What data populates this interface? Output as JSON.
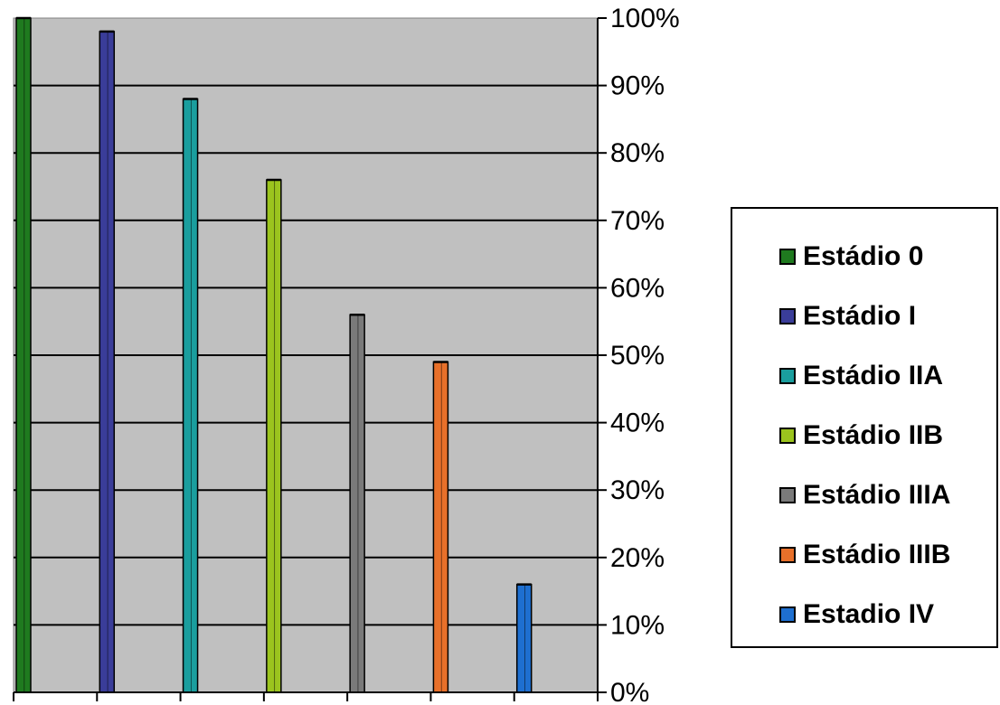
{
  "chart_data": {
    "type": "bar",
    "title": "",
    "xlabel": "",
    "ylabel": "",
    "ylim": [
      0,
      100
    ],
    "y_ticks": [
      "0%",
      "10%",
      "20%",
      "30%",
      "40%",
      "50%",
      "60%",
      "70%",
      "80%",
      "90%",
      "100%"
    ],
    "y_axis_side": "right",
    "grid": true,
    "legend_position": "right",
    "plot_background": "#C0C0C0",
    "series": [
      {
        "name": "Estádio 0",
        "values": [
          100
        ],
        "color": "#1F7A1F"
      },
      {
        "name": "Estádio I",
        "values": [
          98
        ],
        "color": "#3A3D99"
      },
      {
        "name": "Estádio IIA",
        "values": [
          88
        ],
        "color": "#1A9E9E"
      },
      {
        "name": "Estádio IIB",
        "values": [
          76
        ],
        "color": "#9BC41E"
      },
      {
        "name": "Estádio IIIA",
        "values": [
          56
        ],
        "color": "#7A7A7A"
      },
      {
        "name": "Estádio IIIB",
        "values": [
          49
        ],
        "color": "#E8702A"
      },
      {
        "name": "Estadio IV",
        "values": [
          16
        ],
        "color": "#1E6FD0"
      }
    ]
  }
}
